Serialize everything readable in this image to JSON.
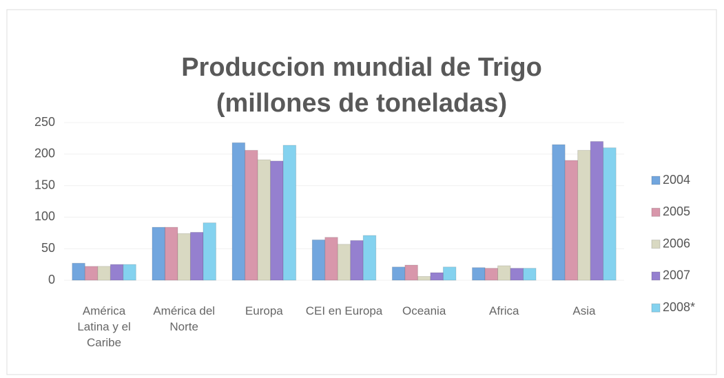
{
  "chart_data": {
    "type": "bar",
    "title": "Produccion mundial de Trigo",
    "subtitle": "(millones de toneladas)",
    "categories": [
      "América Latina y el Caribe",
      "América del Norte",
      "Europa",
      "CEI en Europa",
      "Oceania",
      "Africa",
      "Asia"
    ],
    "series": [
      {
        "name": "2004",
        "color": "#72a6de",
        "values": [
          27,
          84,
          218,
          64,
          21,
          20,
          215
        ]
      },
      {
        "name": "2005",
        "color": "#d897ab",
        "values": [
          22,
          84,
          206,
          68,
          24,
          19,
          190
        ]
      },
      {
        "name": "2006",
        "color": "#d9d9c2",
        "values": [
          22,
          74,
          191,
          57,
          6,
          23,
          206
        ]
      },
      {
        "name": "2007",
        "color": "#9580cf",
        "values": [
          25,
          76,
          189,
          63,
          12,
          19,
          220
        ]
      },
      {
        "name": "2008*",
        "color": "#84d2ef",
        "values": [
          25,
          91,
          214,
          71,
          21,
          19,
          210
        ]
      }
    ],
    "ylim": [
      0,
      250
    ],
    "yticks": [
      0,
      50,
      100,
      150,
      200,
      250
    ],
    "grid": true,
    "legend": "right"
  }
}
